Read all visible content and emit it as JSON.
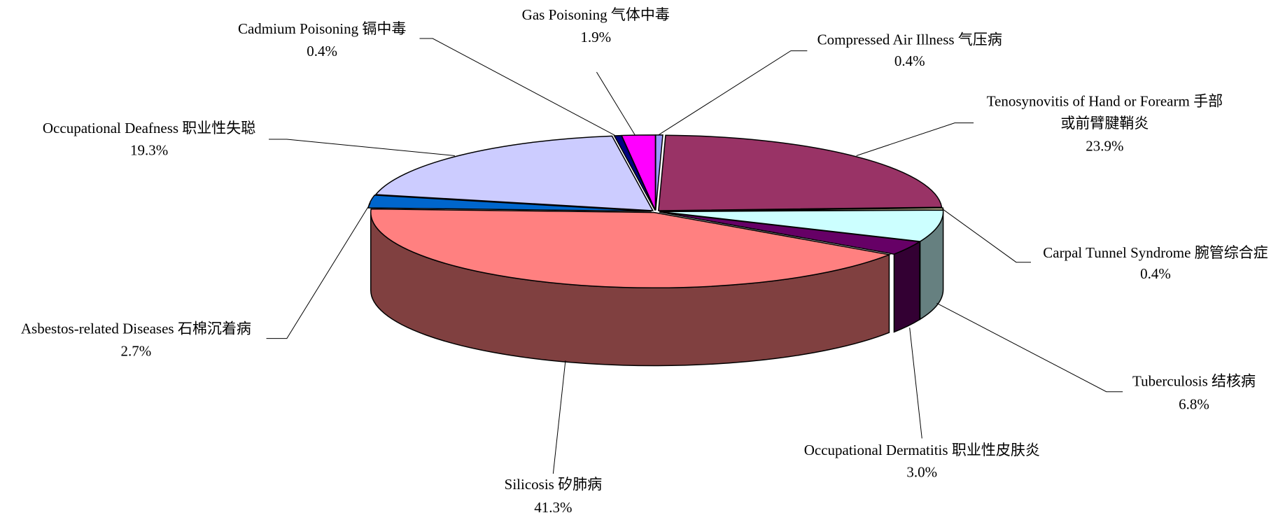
{
  "chart_data": {
    "type": "pie3d",
    "categories": [
      "Compressed Air Illness 气压病",
      "Tenosynovitis of Hand or Forearm 手部或前臂腱鞘炎",
      "Carpal Tunnel Syndrome 腕管综合症",
      "Tuberculosis 结核病",
      "Occupational Dermatitis 职业性皮肤炎",
      "Silicosis 矽肺病",
      "Asbestos-related Diseases 石棉沉着病",
      "Occupational Deafness 职业性失聪",
      "Cadmium Poisoning  镉中毒",
      "Gas Poisoning 气体中毒"
    ],
    "values": [
      0.4,
      23.9,
      0.4,
      6.8,
      3.0,
      41.3,
      2.7,
      19.3,
      0.4,
      1.9
    ],
    "value_labels": [
      "0.4%",
      "23.9%",
      "0.4%",
      "6.8%",
      "3.0%",
      "41.3%",
      "2.7%",
      "19.3%",
      "0.4%",
      "1.9%"
    ],
    "colors": [
      "#9999ff",
      "#993366",
      "#ffffcc",
      "#ccffff",
      "#660066",
      "#ff8080",
      "#0066cc",
      "#ccccff",
      "#000080",
      "#ff00ff"
    ]
  }
}
